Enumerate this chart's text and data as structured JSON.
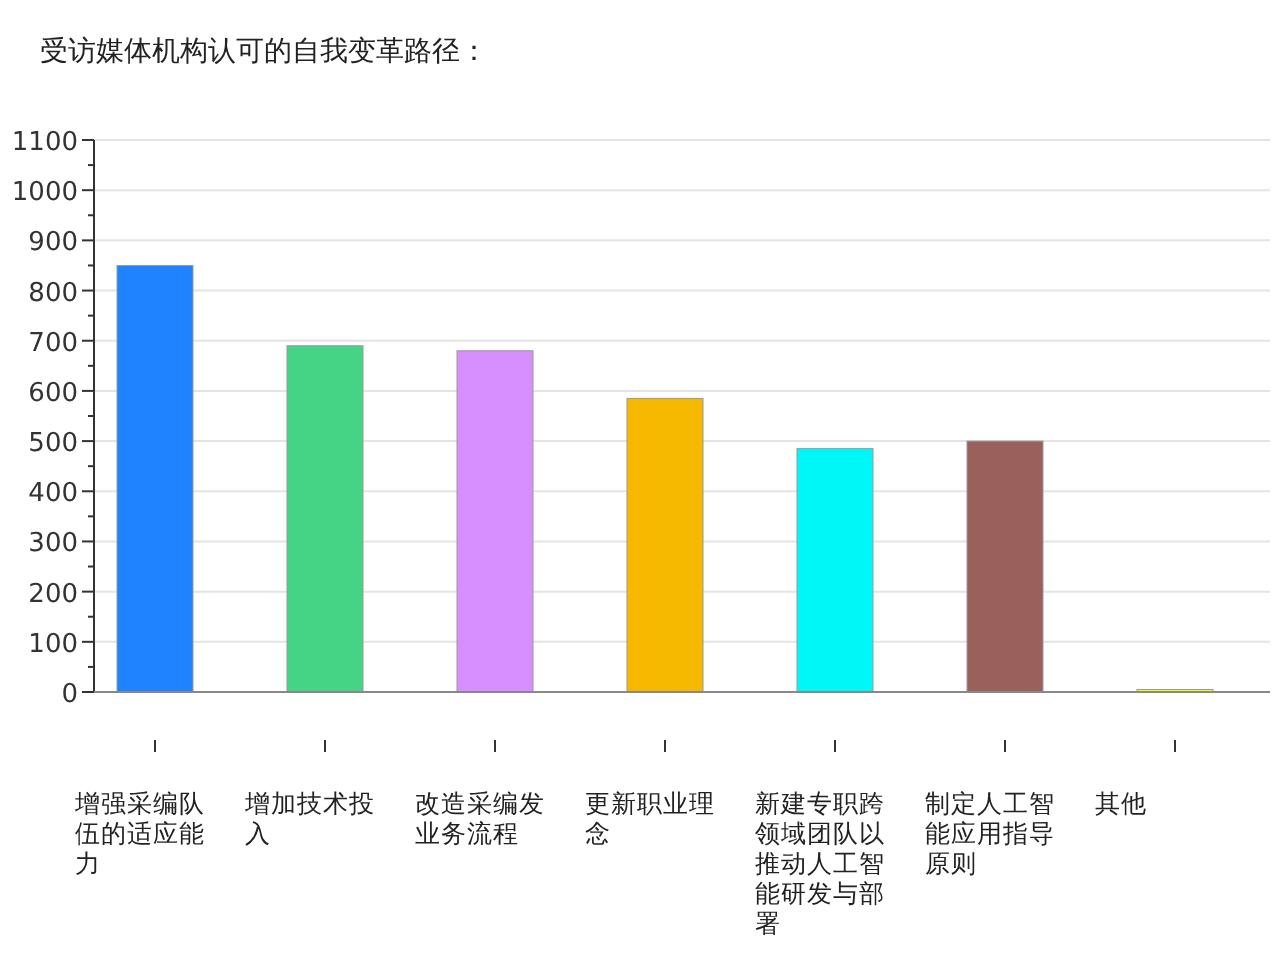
{
  "chart_data": {
    "type": "bar",
    "title": "受访媒体机构认可的自我变革路径：",
    "categories": [
      "增强采编队伍的适应能力",
      "增加技术投入",
      "改造采编发业务流程",
      "更新职业理念",
      "新建专职跨领域团队以推动人工智能研发与部署",
      "制定人工智能应用指导原则",
      "其他"
    ],
    "values": [
      850,
      690,
      680,
      585,
      485,
      500,
      5
    ],
    "colors": [
      "#1f82ff",
      "#45d385",
      "#d78fff",
      "#f7b800",
      "#00f7f7",
      "#9a605c",
      "#ffff00"
    ],
    "ylim": [
      0,
      1100
    ],
    "yticks": [
      0,
      100,
      200,
      300,
      400,
      500,
      600,
      700,
      800,
      900,
      1000,
      1100
    ],
    "grid": "y"
  }
}
